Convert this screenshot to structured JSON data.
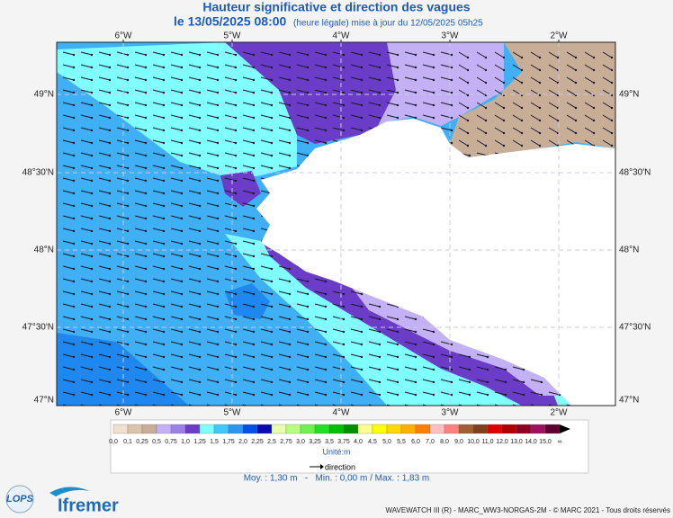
{
  "header": {
    "title": "Hauteur significative et direction des vagues",
    "date": "le 13/05/2025 08:00",
    "update": "(heure légale) mise à jour du 12/05/2025 05h25"
  },
  "map": {
    "lon_labels": [
      "6°W",
      "5°W",
      "4°W",
      "3°W",
      "2°W"
    ],
    "lat_labels": [
      "49°N",
      "48°30'N",
      "48°N",
      "47°30'N",
      "47°N"
    ]
  },
  "colorbar": {
    "labels": [
      "0,0",
      "0,1",
      "0,25",
      "0,5",
      "0,75",
      "1,0",
      "1,25",
      "1,5",
      "1,75",
      "2,0",
      "2,25",
      "2,5",
      "2,75",
      "3,0",
      "3,25",
      "3,5",
      "3,75",
      "4,0",
      "4,5",
      "5,0",
      "5,5",
      "6,0",
      "7,0",
      "8,0",
      "9,0",
      "10,0",
      "11,0",
      "12,0",
      "13,0",
      "14,0",
      "15,0",
      "∞"
    ],
    "colors": [
      "#f0e0d0",
      "#dcc4ac",
      "#c8ae96",
      "#c4b0f4",
      "#9c80e8",
      "#6a3cc8",
      "#80ffff",
      "#40c8f8",
      "#2a96f0",
      "#0050e8",
      "#0a0ab0",
      "#e8ffb0",
      "#b8ff80",
      "#70f050",
      "#20e020",
      "#00c000",
      "#009000",
      "#ffff90",
      "#ffff00",
      "#ffd800",
      "#ffb000",
      "#ff8000",
      "#ffc0c0",
      "#ff8080",
      "#a06030",
      "#804020",
      "#e00000",
      "#b00000",
      "#900020",
      "#a01060",
      "#600030"
    ],
    "unit": "Unité:m",
    "direction": "direction"
  },
  "stats": "Moy. : 1,30 m   -   Min. : 0,00 m / Max. : 1,83 m",
  "logos": {
    "lops": "LOPS",
    "ifremer": "Ifremer"
  },
  "footer": "WAVEWATCH III (R) - MARC_WW3-NORGAS-2M - © MARC 2021 - Tous droits réservés"
}
